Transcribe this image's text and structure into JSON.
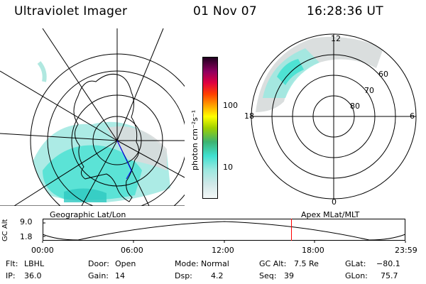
{
  "header": {
    "instrument": "Ultraviolet Imager",
    "date": "01 Nov 07",
    "time": "16:28:36 UT"
  },
  "colors": {
    "map_lines": "#000000",
    "emission_cyan": "#40e0d0",
    "emission_light": "#b0e8e0",
    "emission_grey": "#d8dcdc",
    "time_marker": "#ff0000",
    "track": "#0000ff"
  },
  "colorbar": {
    "unit_label": "photon cm⁻²s⁻¹",
    "ticks": [
      "100",
      "10"
    ],
    "gradient": [
      "#ffffff",
      "#d0e8e8",
      "#40e0d0",
      "#3cb371",
      "#a0d000",
      "#ffff00",
      "#ffa000",
      "#ff0000",
      "#c00060",
      "#600060",
      "#200020"
    ]
  },
  "left_map": {
    "caption": "Geographic Lat/Lon"
  },
  "right_map": {
    "caption": "Apex MLat/MLT",
    "lat_labels": [
      "60",
      "70",
      "80"
    ],
    "mlt_labels": {
      "top": "12",
      "left": "18",
      "right": "6",
      "bottom": "0"
    }
  },
  "altitude_plot": {
    "axis_label": "GC Alt",
    "ytick_top": "9.0",
    "ytick_bottom": "1.8",
    "xticks": [
      "00:00",
      "06:00",
      "12:00",
      "18:00",
      "23:59"
    ],
    "marker_time_fraction": 0.686
  },
  "footer": {
    "row1": [
      {
        "key": "Flt:",
        "value": "LBHL"
      },
      {
        "key": "Door:",
        "value": "Open"
      },
      {
        "key": "Mode:",
        "value": "Normal"
      },
      {
        "key": "GC Alt:",
        "value": "7.5 Re"
      },
      {
        "key": "GLat:",
        "value": "−80.1"
      }
    ],
    "row2": [
      {
        "key": "IP:",
        "value": "36.0"
      },
      {
        "key": "Gain:",
        "value": "14"
      },
      {
        "key": "Dsp:",
        "value": "4.2"
      },
      {
        "key": "Seq:",
        "value": "39"
      },
      {
        "key": "GLon:",
        "value": "75.7"
      }
    ]
  }
}
